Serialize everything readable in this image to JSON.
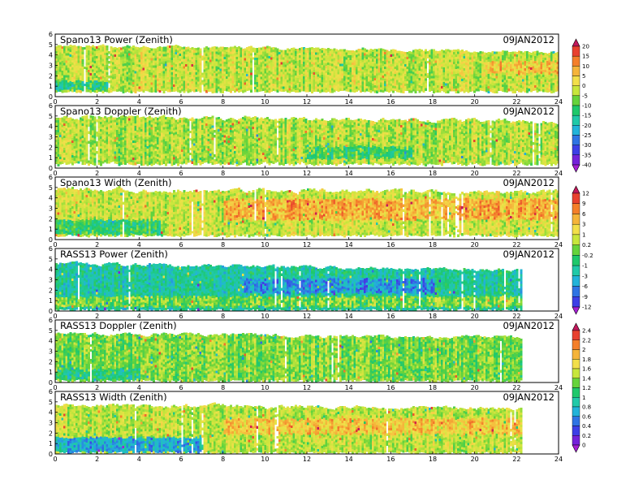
{
  "chart_data": [
    {
      "type": "heatmap",
      "title": "Spano13 Power (Zenith)",
      "date": "09JAN2012",
      "xlabel": "",
      "ylabel": "",
      "xlim": [
        0,
        24
      ],
      "ylim": [
        0,
        6
      ],
      "x_ticks": [
        "0",
        "2",
        "4",
        "6",
        "8",
        "10",
        "12",
        "14",
        "16",
        "18",
        "20",
        "22",
        "24"
      ],
      "y_ticks": [
        "0",
        "1",
        "2",
        "3",
        "4",
        "5",
        "6"
      ],
      "colorbar": "cb_power",
      "field": {
        "base_level": 0.62,
        "top": [
          4.9,
          4.3
        ],
        "top_rough": 0.25,
        "bottom": 0.55,
        "bottom_rough": 0.12,
        "x_end": 24,
        "features": [
          {
            "x": [
              20.5,
              24
            ],
            "y": [
              2.3,
              3.5
            ],
            "level": 0.72
          },
          {
            "x": [
              0,
              2.5
            ],
            "y": [
              0.7,
              1.6
            ],
            "level": 0.45
          }
        ]
      }
    },
    {
      "type": "heatmap",
      "title": "Spano13 Doppler (Zenith)",
      "date": "09JAN2012",
      "xlabel": "",
      "ylabel": "",
      "xlim": [
        0,
        24
      ],
      "ylim": [
        0,
        6
      ],
      "x_ticks": [
        "0",
        "2",
        "4",
        "6",
        "8",
        "10",
        "12",
        "14",
        "16",
        "18",
        "20",
        "22",
        "24"
      ],
      "y_ticks": [
        "0",
        "1",
        "2",
        "3",
        "4",
        "5",
        "6"
      ],
      "colorbar": "cb_power",
      "field": {
        "base_level": 0.6,
        "top": [
          4.9,
          4.5
        ],
        "top_rough": 0.3,
        "bottom": 0.4,
        "bottom_rough": 0.3,
        "x_end": 24,
        "features": [
          {
            "x": [
              12,
              17
            ],
            "y": [
              1.0,
              2.2
            ],
            "level": 0.48
          }
        ]
      }
    },
    {
      "type": "heatmap",
      "title": "Spano13 Width (Zenith)",
      "date": "09JAN2012",
      "xlabel": "",
      "ylabel": "",
      "xlim": [
        0,
        24
      ],
      "ylim": [
        0,
        6
      ],
      "x_ticks": [
        "0",
        "2",
        "4",
        "6",
        "8",
        "10",
        "12",
        "14",
        "16",
        "18",
        "20",
        "22",
        "24"
      ],
      "y_ticks": [
        "0",
        "1",
        "2",
        "3",
        "4",
        "5",
        "6"
      ],
      "colorbar": "cb_width",
      "field": {
        "base_level": 0.6,
        "top": [
          4.8,
          4.6
        ],
        "top_rough": 0.35,
        "bottom": 0.45,
        "bottom_rough": 0.1,
        "x_end": 24,
        "features": [
          {
            "x": [
              0,
              5
            ],
            "y": [
              0.6,
              2.0
            ],
            "level": 0.42
          },
          {
            "x": [
              8,
              24
            ],
            "y": [
              2.0,
              4.0
            ],
            "level": 0.75
          }
        ]
      }
    },
    {
      "type": "heatmap",
      "title": "RASS13 Power (Zenith)",
      "date": "09JAN2012",
      "xlabel": "",
      "ylabel": "",
      "xlim": [
        0,
        24
      ],
      "ylim": [
        0,
        6
      ],
      "x_ticks": [
        "0",
        "2",
        "4",
        "6",
        "8",
        "10",
        "12",
        "14",
        "16",
        "18",
        "20",
        "22",
        "24"
      ],
      "y_ticks": [
        "0",
        "1",
        "2",
        "3",
        "4",
        "5",
        "6"
      ],
      "colorbar": "cb_power",
      "field": {
        "base_level": 0.4,
        "top": [
          4.6,
          3.9
        ],
        "top_rough": 0.25,
        "bottom": 0.2,
        "bottom_rough": 0.05,
        "x_end": 22.2,
        "features": [
          {
            "x": [
              0,
              22.2
            ],
            "y": [
              0.5,
              1.5
            ],
            "level": 0.55
          },
          {
            "x": [
              9,
              18
            ],
            "y": [
              1.8,
              3.2
            ],
            "level": 0.28
          }
        ]
      }
    },
    {
      "type": "heatmap",
      "title": "RASS13 Doppler (Zenith)",
      "date": "09JAN2012",
      "xlabel": "",
      "ylabel": "",
      "xlim": [
        0,
        24
      ],
      "ylim": [
        0,
        6
      ],
      "x_ticks": [
        "0",
        "2",
        "4",
        "6",
        "8",
        "10",
        "12",
        "14",
        "16",
        "18",
        "20",
        "22",
        "24"
      ],
      "y_ticks": [
        "0",
        "1",
        "2",
        "3",
        "4",
        "5",
        "6"
      ],
      "colorbar": "cb_doppler",
      "field": {
        "base_level": 0.55,
        "top": [
          4.7,
          4.3
        ],
        "top_rough": 0.25,
        "bottom": 0.25,
        "bottom_rough": 0.05,
        "x_end": 22.2,
        "features": [
          {
            "x": [
              0,
              4
            ],
            "y": [
              0.4,
              1.4
            ],
            "level": 0.45
          }
        ]
      }
    },
    {
      "type": "heatmap",
      "title": "RASS13 Width (Zenith)",
      "date": "09JAN2012",
      "xlabel": "",
      "ylabel": "",
      "xlim": [
        0,
        24
      ],
      "ylim": [
        0,
        6
      ],
      "x_ticks": [
        "0",
        "2",
        "4",
        "6",
        "8",
        "10",
        "12",
        "14",
        "16",
        "18",
        "20",
        "22",
        "24"
      ],
      "y_ticks": [
        "0",
        "1",
        "2",
        "3",
        "4",
        "5",
        "6"
      ],
      "colorbar": "cb_width",
      "field": {
        "base_level": 0.58,
        "top": [
          4.7,
          4.4
        ],
        "top_rough": 0.3,
        "bottom": 0.2,
        "bottom_rough": 0.05,
        "x_end": 22.2,
        "features": [
          {
            "x": [
              0,
              7
            ],
            "y": [
              0.3,
              1.7
            ],
            "level": 0.25
          },
          {
            "x": [
              8,
              22.2
            ],
            "y": [
              2.0,
              3.5
            ],
            "level": 0.7
          }
        ]
      }
    }
  ],
  "colorbars": {
    "cb_power": {
      "labels": [
        "20",
        "15",
        "10",
        "5",
        "0",
        "-5",
        "-10",
        "-15",
        "-20",
        "-25",
        "-30",
        "-35",
        "-40"
      ],
      "colors": [
        "#c2185b",
        "#e8412f",
        "#f47f2a",
        "#f5b43a",
        "#f2df4a",
        "#c8e63c",
        "#66d33b",
        "#1ec86b",
        "#20c9a8",
        "#22b3d9",
        "#2f74e3",
        "#3d3fe6",
        "#7422d9",
        "#a61fd4"
      ]
    },
    "cb_width": {
      "labels": [
        "12",
        "9",
        "6",
        "3",
        "1",
        "0.2",
        "-0.2",
        "-1",
        "-3",
        "-6",
        "-9",
        "-12"
      ],
      "colors": [
        "#c2185b",
        "#e8412f",
        "#f47f2a",
        "#f5b43a",
        "#f2df4a",
        "#c8e63c",
        "#66d33b",
        "#1ec86b",
        "#20c9a8",
        "#22b3d9",
        "#2f74e3",
        "#3d3fe6",
        "#a61fd4"
      ]
    },
    "cb_doppler": {
      "labels": [
        "2.4",
        "2.2",
        "2",
        "1.8",
        "1.6",
        "1.4",
        "1.2",
        "1",
        "0.8",
        "0.6",
        "0.4",
        "0.2",
        "0"
      ],
      "colors": [
        "#c2185b",
        "#e8412f",
        "#f47f2a",
        "#f5b43a",
        "#f2df4a",
        "#c8e63c",
        "#66d33b",
        "#1ec86b",
        "#20c9a8",
        "#22b3d9",
        "#2f74e3",
        "#3d3fe6",
        "#7422d9",
        "#a61fd4"
      ]
    }
  }
}
